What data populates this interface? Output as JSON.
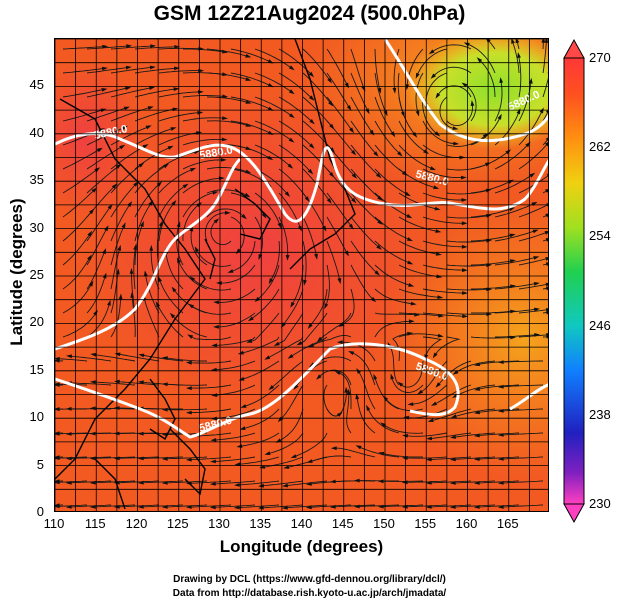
{
  "title": "GSM 12Z21Aug2024 (500.0hPa)",
  "xlabel": "Longitude (degrees)",
  "ylabel": "Latitude  (degrees)",
  "x_ticks": [
    "110",
    "115",
    "120",
    "125",
    "130",
    "135",
    "140",
    "145",
    "150",
    "155",
    "160",
    "165"
  ],
  "y_ticks": [
    "0",
    "5",
    "10",
    "15",
    "20",
    "25",
    "30",
    "35",
    "40",
    "45"
  ],
  "colorbar": {
    "labels": [
      "230",
      "238",
      "246",
      "254",
      "262",
      "270"
    ],
    "colors": [
      "#ff40c0",
      "#3010c0",
      "#1080ff",
      "#10d0c0",
      "#30d030",
      "#a0e020",
      "#f0e010",
      "#ffa010",
      "#ff6020",
      "#ff3030"
    ]
  },
  "contour_label": "5880.0",
  "credits": {
    "line1": "Drawing by DCL (https://www.gfd-dennou.org/library/dcl/)",
    "line2": "Data from http://database.rish.kyoto-u.ac.jp/arch/jmadata/"
  }
}
